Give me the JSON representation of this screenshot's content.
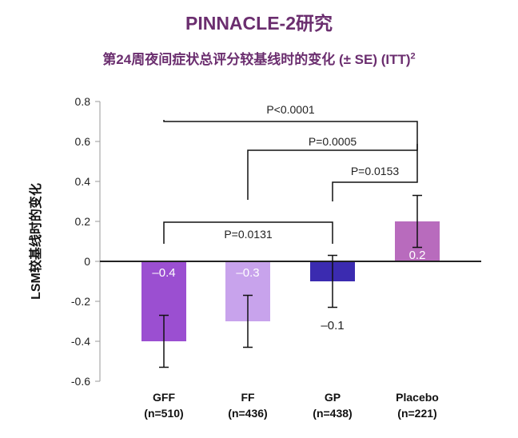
{
  "chart_data": {
    "type": "bar",
    "title": "PINNACLE-2研究",
    "subtitle": "第24周夜间症状总评分较基线时的变化 (± SE) (ITT)",
    "subtitle_sup": "2",
    "ylabel": "LSM较基线时的变化",
    "ylim": [
      -0.6,
      0.8
    ],
    "yticks": [
      "0.8",
      "0.6",
      "0.4",
      "0.2",
      "0",
      "-0.2",
      "-0.4",
      "-0.6"
    ],
    "ytick_values": [
      0.8,
      0.6,
      0.4,
      0.2,
      0,
      -0.2,
      -0.4,
      -0.6
    ],
    "categories": [
      {
        "name": "GFF",
        "n": "(n=510)"
      },
      {
        "name": "FF",
        "n": "(n=436)"
      },
      {
        "name": "GP",
        "n": "(n=438)"
      },
      {
        "name": "Placebo",
        "n": "(n=221)"
      }
    ],
    "values": [
      -0.4,
      -0.3,
      -0.1,
      0.2
    ],
    "value_labels": [
      "–0.4",
      "–0.3",
      "–0.1",
      "0.2"
    ],
    "errors": [
      0.13,
      0.13,
      0.13,
      0.13
    ],
    "colors": [
      "#9b4fd1",
      "#c8a3ec",
      "#3b2bb0",
      "#b86bbd"
    ],
    "comparisons": [
      {
        "from": 0,
        "to": 3,
        "label": "P<0.0001"
      },
      {
        "from": 1,
        "to": 3,
        "label": "P=0.0005"
      },
      {
        "from": 2,
        "to": 3,
        "label": "P=0.0153"
      },
      {
        "from": 0,
        "to": 2,
        "label": "P=0.0131"
      }
    ]
  }
}
